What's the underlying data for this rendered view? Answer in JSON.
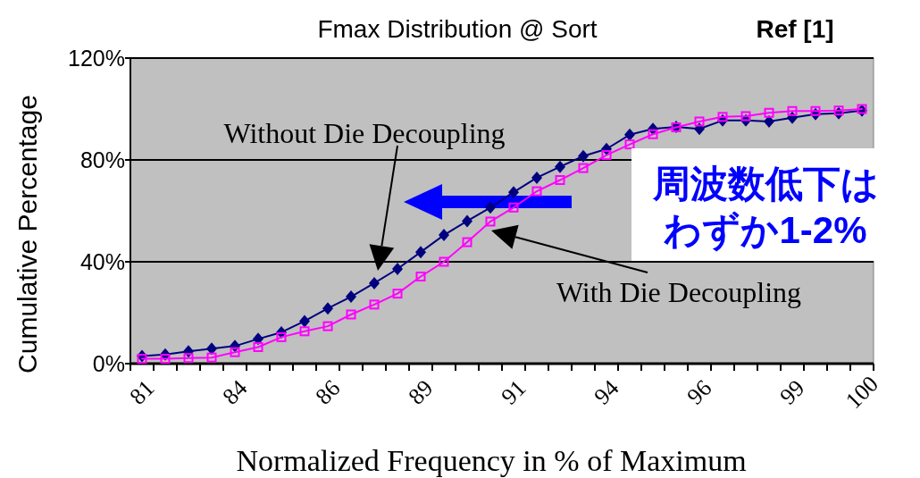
{
  "chart_data": {
    "type": "line",
    "title": "Fmax Distribution @ Sort",
    "xlabel": "Normalized Frequency in % of Maximum",
    "ylabel": "Cumulative Percentage",
    "categories": [
      "81",
      null,
      null,
      null,
      "84",
      null,
      null,
      null,
      "86",
      null,
      null,
      null,
      "89",
      null,
      null,
      null,
      "91",
      null,
      null,
      null,
      "94",
      null,
      null,
      null,
      "96",
      null,
      null,
      null,
      "99",
      null,
      null,
      "100"
    ],
    "series": [
      {
        "name": "Without Die Decoupling",
        "color": "#000080",
        "marker": "diamond",
        "values": [
          3.0,
          3.6,
          4.8,
          5.9,
          6.9,
          9.7,
          12.3,
          16.7,
          21.7,
          26.3,
          31.6,
          37.2,
          43.8,
          50.5,
          56.0,
          61.3,
          67.3,
          73.0,
          77.3,
          81.5,
          84.3,
          89.9,
          92.2,
          93.0,
          92.2,
          95.5,
          95.5,
          95.1,
          96.6,
          98.0,
          98.3,
          99.4
        ]
      },
      {
        "name": "With Die Decoupling",
        "color": "#ff00ff",
        "marker": "square",
        "values": [
          1.9,
          1.9,
          2.2,
          2.4,
          4.5,
          6.5,
          10.4,
          12.7,
          14.7,
          19.3,
          23.2,
          27.5,
          34.2,
          40.0,
          47.7,
          55.8,
          61.3,
          67.7,
          72.1,
          76.8,
          81.9,
          86.1,
          90.1,
          92.8,
          95.1,
          96.9,
          97.2,
          98.5,
          99.2,
          99.2,
          99.4,
          100.0
        ]
      }
    ],
    "ylim": [
      0,
      120
    ],
    "yticks": [
      {
        "value": 0,
        "label": "0%"
      },
      {
        "value": 40,
        "label": "40%"
      },
      {
        "value": 80,
        "label": "80%"
      },
      {
        "value": 120,
        "label": "120%"
      }
    ],
    "grid": "y",
    "line_style": "solid",
    "annotations": [
      "Ref [1]",
      "周波数低下は",
      "わずか1-2%"
    ]
  }
}
